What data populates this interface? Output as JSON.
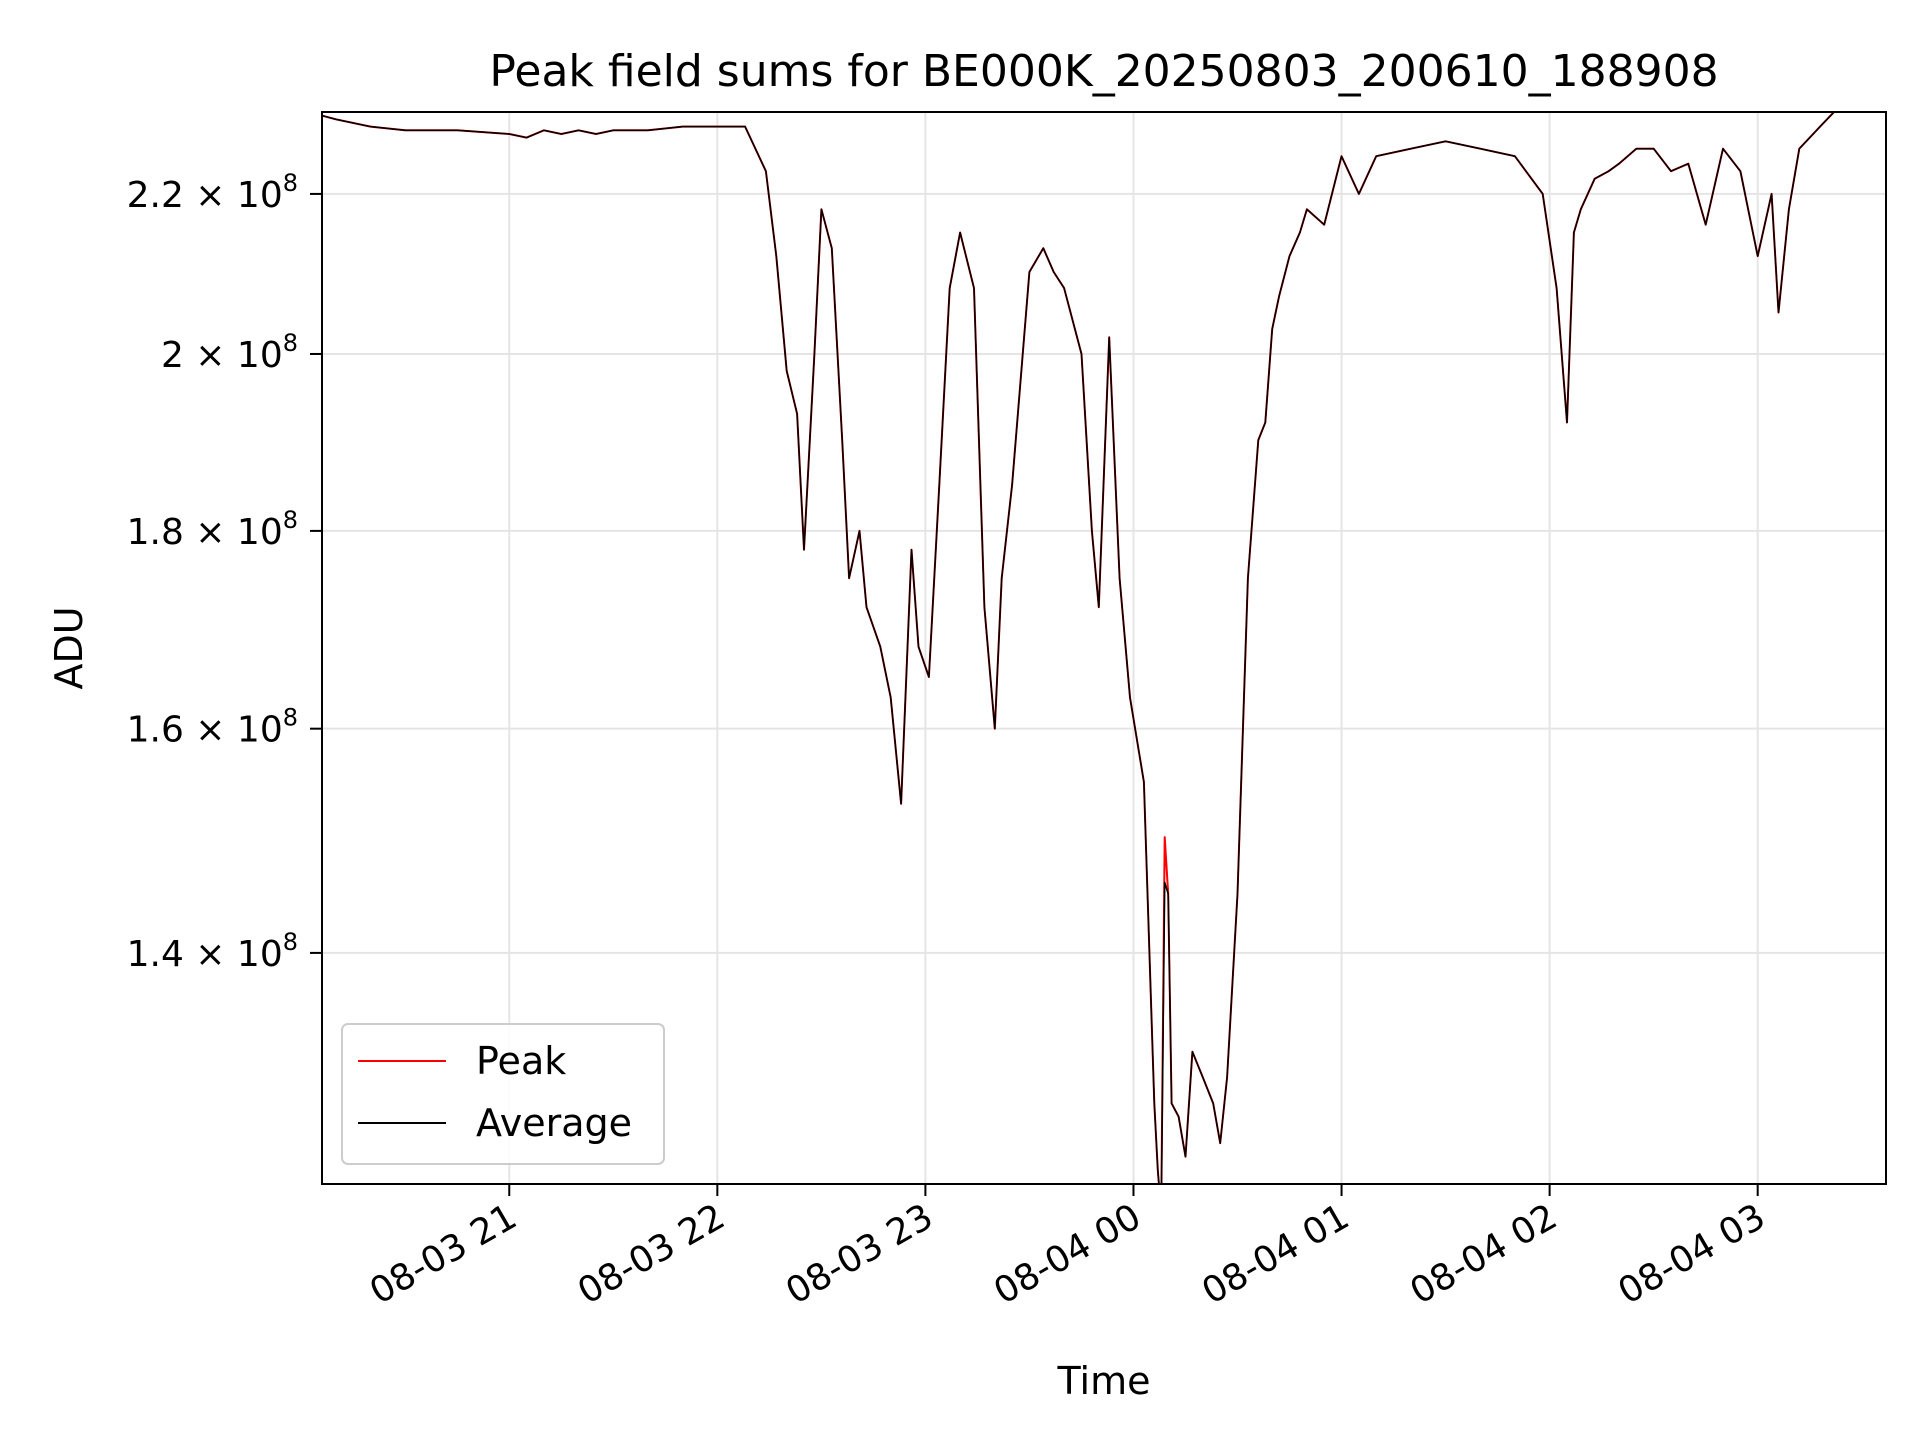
{
  "chart_data": {
    "type": "line",
    "title": "Peak field sums for BE000K_20250803_200610_188908",
    "xlabel": "Time",
    "ylabel": "ADU",
    "y_scale": "log",
    "grid": true,
    "legend_position": "lower-left",
    "xlim": [
      "2025-08-03T20:06",
      "2025-08-04T03:37"
    ],
    "ylim": [
      122000000,
      231000000
    ],
    "x_ticks": [
      {
        "value": "2025-08-03T21:00",
        "label": "08-03 21"
      },
      {
        "value": "2025-08-03T22:00",
        "label": "08-03 22"
      },
      {
        "value": "2025-08-03T23:00",
        "label": "08-03 23"
      },
      {
        "value": "2025-08-04T00:00",
        "label": "08-04 00"
      },
      {
        "value": "2025-08-04T01:00",
        "label": "08-04 01"
      },
      {
        "value": "2025-08-04T02:00",
        "label": "08-04 02"
      },
      {
        "value": "2025-08-04T03:00",
        "label": "08-04 03"
      }
    ],
    "y_ticks": [
      {
        "value": 140000000,
        "mantissa": "1.4",
        "exponent": "8"
      },
      {
        "value": 160000000,
        "mantissa": "1.6",
        "exponent": "8"
      },
      {
        "value": 180000000,
        "mantissa": "1.8",
        "exponent": "8"
      },
      {
        "value": 200000000,
        "mantissa": "2",
        "exponent": "8"
      },
      {
        "value": 220000000,
        "mantissa": "2.2",
        "exponent": "8"
      }
    ],
    "series": [
      {
        "name": "Peak",
        "color": "#ff0000"
      },
      {
        "name": "Average",
        "color": "#000000"
      }
    ],
    "x": [
      "2025-08-03T20:06",
      "2025-08-03T20:10",
      "2025-08-03T20:20",
      "2025-08-03T20:30",
      "2025-08-03T20:45",
      "2025-08-03T21:00",
      "2025-08-03T21:05",
      "2025-08-03T21:10",
      "2025-08-03T21:15",
      "2025-08-03T21:20",
      "2025-08-03T21:25",
      "2025-08-03T21:30",
      "2025-08-03T21:40",
      "2025-08-03T21:50",
      "2025-08-03T22:00",
      "2025-08-03T22:08",
      "2025-08-03T22:14",
      "2025-08-03T22:17",
      "2025-08-03T22:20",
      "2025-08-03T22:23",
      "2025-08-03T22:25",
      "2025-08-03T22:28",
      "2025-08-03T22:30",
      "2025-08-03T22:33",
      "2025-08-03T22:36",
      "2025-08-03T22:38",
      "2025-08-03T22:41",
      "2025-08-03T22:43",
      "2025-08-03T22:45",
      "2025-08-03T22:47",
      "2025-08-03T22:50",
      "2025-08-03T22:53",
      "2025-08-03T22:56",
      "2025-08-03T22:58",
      "2025-08-03T23:01",
      "2025-08-03T23:04",
      "2025-08-03T23:07",
      "2025-08-03T23:10",
      "2025-08-03T23:14",
      "2025-08-03T23:17",
      "2025-08-03T23:20",
      "2025-08-03T23:22",
      "2025-08-03T23:25",
      "2025-08-03T23:30",
      "2025-08-03T23:34",
      "2025-08-03T23:37",
      "2025-08-03T23:40",
      "2025-08-03T23:45",
      "2025-08-03T23:48",
      "2025-08-03T23:50",
      "2025-08-03T23:53",
      "2025-08-03T23:56",
      "2025-08-03T23:59",
      "2025-08-04T00:03",
      "2025-08-04T00:06",
      "2025-08-04T00:07",
      "2025-08-04T00:08",
      "2025-08-04T00:09",
      "2025-08-04T00:10",
      "2025-08-04T00:11",
      "2025-08-04T00:13",
      "2025-08-04T00:15",
      "2025-08-04T00:17",
      "2025-08-04T00:20",
      "2025-08-04T00:23",
      "2025-08-04T00:25",
      "2025-08-04T00:27",
      "2025-08-04T00:30",
      "2025-08-04T00:33",
      "2025-08-04T00:36",
      "2025-08-04T00:38",
      "2025-08-04T00:40",
      "2025-08-04T00:42",
      "2025-08-04T00:45",
      "2025-08-04T00:48",
      "2025-08-04T00:50",
      "2025-08-04T00:55",
      "2025-08-04T01:00",
      "2025-08-04T01:05",
      "2025-08-04T01:10",
      "2025-08-04T01:20",
      "2025-08-04T01:30",
      "2025-08-04T01:40",
      "2025-08-04T01:50",
      "2025-08-04T01:58",
      "2025-08-04T02:02",
      "2025-08-04T02:05",
      "2025-08-04T02:07",
      "2025-08-04T02:09",
      "2025-08-04T02:13",
      "2025-08-04T02:17",
      "2025-08-04T02:20",
      "2025-08-04T02:25",
      "2025-08-04T02:30",
      "2025-08-04T02:35",
      "2025-08-04T02:40",
      "2025-08-04T02:45",
      "2025-08-04T02:50",
      "2025-08-04T02:55",
      "2025-08-04T03:00",
      "2025-08-04T03:04",
      "2025-08-04T03:06",
      "2025-08-04T03:09",
      "2025-08-04T03:12",
      "2025-08-04T03:18",
      "2025-08-04T03:22"
    ],
    "values": [
      230500000,
      230000000,
      229000000,
      228500000,
      228500000,
      228000000,
      227500000,
      228500000,
      228000000,
      228500000,
      228000000,
      228500000,
      228500000,
      229000000,
      229000000,
      229000000,
      223000000,
      212000000,
      198000000,
      193000000,
      178000000,
      200000000,
      218000000,
      213000000,
      190000000,
      175000000,
      180000000,
      172000000,
      170000000,
      168000000,
      163000000,
      153000000,
      178000000,
      168000000,
      165000000,
      185000000,
      208000000,
      215000000,
      208000000,
      172000000,
      160000000,
      175000000,
      185000000,
      210000000,
      213000000,
      210000000,
      208000000,
      200000000,
      180000000,
      172000000,
      202000000,
      175000000,
      163000000,
      155000000,
      128000000,
      123000000,
      120000000,
      150000000,
      145000000,
      128000000,
      127000000,
      124000000,
      132000000,
      130000000,
      128000000,
      125000000,
      130000000,
      145000000,
      175000000,
      190000000,
      192000000,
      203000000,
      207000000,
      212000000,
      215000000,
      218000000,
      216000000,
      225000000,
      220000000,
      225000000,
      226000000,
      227000000,
      226000000,
      225000000,
      220000000,
      208000000,
      192000000,
      215000000,
      218000000,
      222000000,
      223000000,
      224000000,
      226000000,
      226000000,
      223000000,
      224000000,
      216000000,
      226000000,
      223000000,
      212000000,
      220000000,
      205000000,
      218000000,
      226000000,
      229000000,
      231000000
    ],
    "average_offset": [
      0,
      0,
      0,
      0,
      0,
      0,
      0,
      0,
      0,
      0,
      0,
      0,
      0,
      0,
      0,
      0,
      0,
      0,
      0,
      0,
      0,
      0,
      0,
      0,
      0,
      0,
      0,
      0,
      0,
      0,
      0,
      0,
      0,
      0,
      0,
      0,
      0,
      0,
      0,
      0,
      0,
      0,
      0,
      0,
      0,
      0,
      0,
      0,
      0,
      0,
      0,
      0,
      0,
      0,
      0,
      0,
      0,
      -4000000,
      0,
      0,
      0,
      0,
      0,
      0,
      0,
      0,
      0,
      0,
      0,
      0,
      0,
      0,
      0,
      0,
      0,
      0,
      0,
      0,
      0,
      0,
      0,
      0,
      0,
      0,
      0,
      0,
      0,
      0,
      0,
      0,
      0,
      0,
      0,
      0,
      0,
      0,
      0,
      0,
      0,
      0,
      0,
      0,
      0,
      0,
      0,
      0
    ]
  }
}
